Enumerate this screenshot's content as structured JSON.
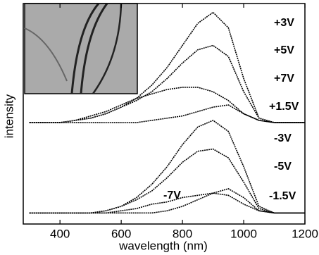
{
  "chart_data": {
    "type": "line",
    "x_label": "wavelength (nm)",
    "y_label": "intensity",
    "x": [
      300,
      350,
      400,
      450,
      500,
      550,
      600,
      650,
      700,
      750,
      800,
      850,
      900,
      950,
      1000,
      1050,
      1100,
      1150,
      1200
    ],
    "series": [
      {
        "name": "+3V",
        "color": "#000000",
        "values": [
          4.6,
          4.6,
          4.6,
          4.7,
          4.8,
          5.0,
          5.3,
          5.7,
          6.3,
          7.1,
          8.1,
          9.1,
          9.6,
          8.9,
          6.6,
          4.8,
          4.6,
          4.6,
          4.6
        ]
      },
      {
        "name": "+5V",
        "color": "#000000",
        "values": [
          4.6,
          4.6,
          4.6,
          4.7,
          4.8,
          5.0,
          5.3,
          5.6,
          6.0,
          6.6,
          7.3,
          7.9,
          8.1,
          7.6,
          6.0,
          4.8,
          4.6,
          4.6,
          4.6
        ]
      },
      {
        "name": "+7V",
        "color": "#000000",
        "values": [
          4.6,
          4.6,
          4.6,
          4.7,
          4.9,
          5.1,
          5.4,
          5.7,
          5.9,
          6.1,
          6.2,
          6.2,
          6.0,
          5.6,
          5.0,
          4.7,
          4.6,
          4.6,
          4.6
        ]
      },
      {
        "name": "+1.5V",
        "color": "#000000",
        "values": [
          4.6,
          4.6,
          4.6,
          4.6,
          4.6,
          4.6,
          4.6,
          4.6,
          4.7,
          4.8,
          4.9,
          5.1,
          5.3,
          5.4,
          5.0,
          4.7,
          4.6,
          4.6,
          4.6
        ]
      },
      {
        "name": "-3V",
        "color": "#000000",
        "values": [
          0.5,
          0.5,
          0.5,
          0.5,
          0.5,
          0.6,
          0.8,
          1.2,
          1.8,
          2.6,
          3.6,
          4.4,
          4.7,
          4.2,
          2.6,
          0.8,
          0.5,
          0.5,
          0.5
        ]
      },
      {
        "name": "-5V",
        "color": "#000000",
        "values": [
          0.5,
          0.5,
          0.5,
          0.5,
          0.5,
          0.6,
          0.8,
          1.1,
          1.5,
          2.1,
          2.8,
          3.3,
          3.4,
          3.0,
          1.9,
          0.7,
          0.5,
          0.5,
          0.5
        ]
      },
      {
        "name": "-7V",
        "color": "#000000",
        "values": [
          0.5,
          0.5,
          0.5,
          0.5,
          0.5,
          0.5,
          0.6,
          0.7,
          0.9,
          1.0,
          1.2,
          1.3,
          1.4,
          1.3,
          0.9,
          0.6,
          0.5,
          0.5,
          0.5
        ]
      },
      {
        "name": "-1.5V",
        "color": "#000000",
        "values": [
          0.5,
          0.5,
          0.5,
          0.5,
          0.5,
          0.5,
          0.5,
          0.5,
          0.5,
          0.6,
          0.8,
          1.1,
          1.4,
          1.6,
          1.2,
          0.6,
          0.5,
          0.5,
          0.5
        ]
      }
    ],
    "xlim": [
      280,
      1200
    ],
    "xticks": [
      400,
      600,
      800,
      1000,
      1200
    ],
    "ylim": [
      0,
      10
    ],
    "grid": false
  }
}
